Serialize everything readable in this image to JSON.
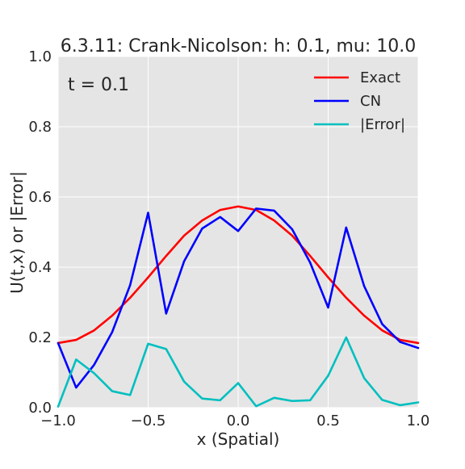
{
  "chart_data": {
    "type": "line",
    "title": "6.3.11: Crank-Nicolson: h: 0.1, mu: 10.0",
    "xlabel": "x (Spatial)",
    "ylabel": "U(t,x) or |Error|",
    "annotation": "t = 0.1",
    "xlim": [
      -1.0,
      1.0
    ],
    "ylim": [
      0.0,
      1.0
    ],
    "xticks": [
      -1.0,
      -0.5,
      0.0,
      0.5,
      1.0
    ],
    "xtick_labels": [
      "−1.0",
      "−0.5",
      "0.0",
      "0.5",
      "1.0"
    ],
    "yticks": [
      0.0,
      0.2,
      0.4,
      0.6,
      0.8,
      1.0
    ],
    "ytick_labels": [
      "0.0",
      "0.2",
      "0.4",
      "0.6",
      "0.8",
      "1.0"
    ],
    "grid": true,
    "legend_position": "top-right",
    "x": [
      -1.0,
      -0.9,
      -0.8,
      -0.7,
      -0.6,
      -0.5,
      -0.4,
      -0.3,
      -0.2,
      -0.1,
      0.0,
      0.1,
      0.2,
      0.3,
      0.4,
      0.5,
      0.6,
      0.7,
      0.8,
      0.9,
      1.0
    ],
    "series": [
      {
        "name": "Exact",
        "color": "#ff0000",
        "values": [
          0.184,
          0.193,
          0.22,
          0.262,
          0.313,
          0.371,
          0.432,
          0.49,
          0.533,
          0.563,
          0.573,
          0.563,
          0.533,
          0.49,
          0.432,
          0.371,
          0.313,
          0.262,
          0.22,
          0.193,
          0.184
        ]
      },
      {
        "name": "CN",
        "color": "#0000ff",
        "values": [
          0.184,
          0.057,
          0.122,
          0.215,
          0.349,
          0.555,
          0.268,
          0.417,
          0.51,
          0.543,
          0.503,
          0.567,
          0.561,
          0.508,
          0.413,
          0.285,
          0.513,
          0.346,
          0.238,
          0.187,
          0.17
        ]
      },
      {
        "name": "|Error|",
        "color": "#00bfbf",
        "values": [
          0.003,
          0.137,
          0.098,
          0.047,
          0.036,
          0.182,
          0.167,
          0.074,
          0.026,
          0.021,
          0.07,
          0.004,
          0.028,
          0.019,
          0.021,
          0.091,
          0.2,
          0.084,
          0.022,
          0.007,
          0.015
        ]
      }
    ]
  }
}
